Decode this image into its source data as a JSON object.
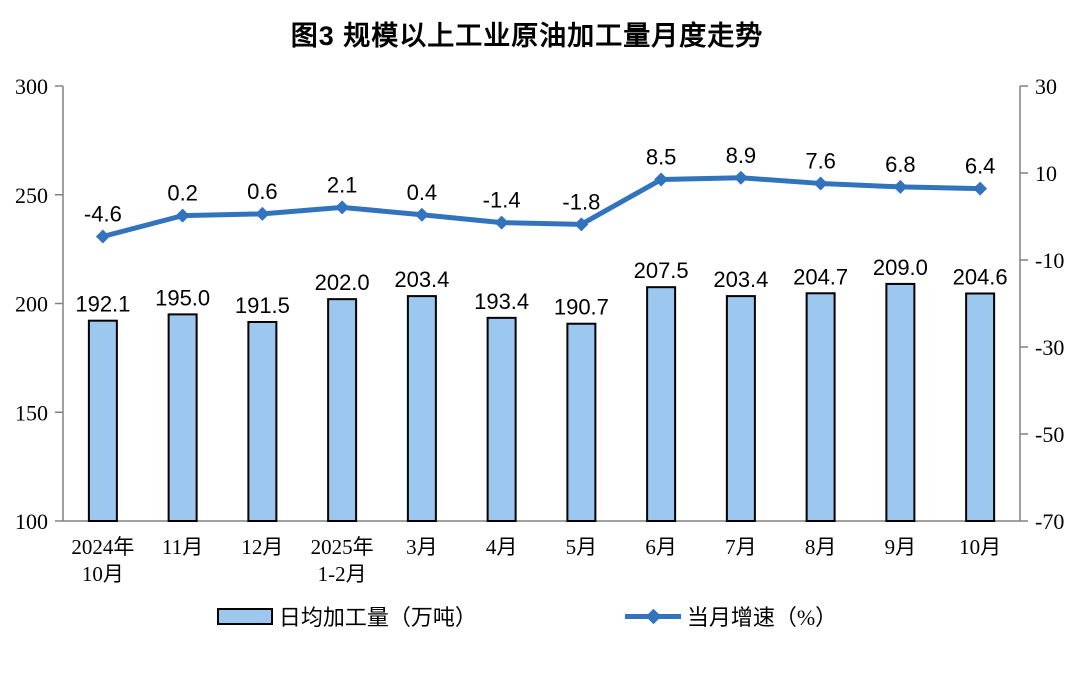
{
  "title": "图3  规模以上工业原油加工量月度走势",
  "chart_data": {
    "type": "combo-bar-line",
    "title": "图3  规模以上工业原油加工量月度走势",
    "categories": [
      "2024年\n10月",
      "11月",
      "12月",
      "2025年\n1-2月",
      "3月",
      "4月",
      "5月",
      "6月",
      "7月",
      "8月",
      "9月",
      "10月"
    ],
    "series": [
      {
        "name": "日均加工量（万吨）",
        "type": "bar",
        "axis": "left",
        "values": [
          192.1,
          195.0,
          191.5,
          202.0,
          203.4,
          193.4,
          190.7,
          207.5,
          203.4,
          204.7,
          209.0,
          204.6
        ],
        "fill": "#9CC7EF",
        "stroke": "#000000"
      },
      {
        "name": "当月增速（%）",
        "type": "line",
        "axis": "right",
        "values": [
          -4.6,
          0.2,
          0.6,
          2.1,
          0.4,
          -1.4,
          -1.8,
          8.5,
          8.9,
          7.6,
          6.8,
          6.4
        ],
        "color": "#3273BD",
        "marker": "diamond"
      }
    ],
    "left_axis": {
      "min": 100,
      "max": 300,
      "ticks": [
        300,
        250,
        200,
        150,
        100
      ]
    },
    "right_axis": {
      "min": -70,
      "max": 30,
      "ticks": [
        30,
        10,
        -10,
        -30,
        -50,
        -70
      ]
    },
    "grid": false,
    "legend_position": "bottom",
    "axis_line_color": "#808080",
    "value_label_decimals": 1
  }
}
